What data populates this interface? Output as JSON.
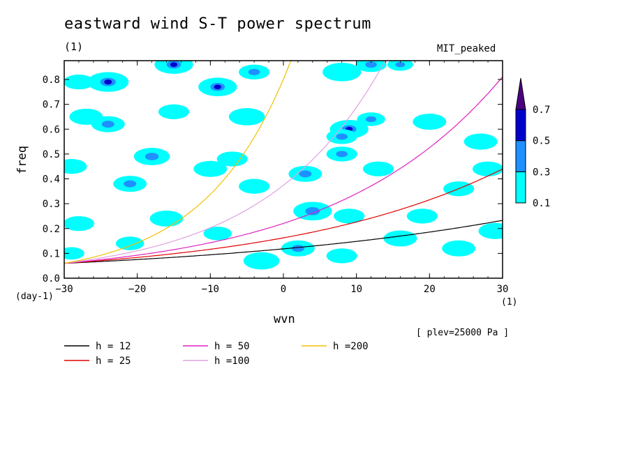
{
  "header": {
    "title": "eastward wind S-T power spectrum",
    "unit_left": "(1)",
    "model": "MIT_peaked",
    "plev": "[ plev=25000 Pa ]",
    "x_unit_left": "(day-1)",
    "x_unit_right": "(1)"
  },
  "chart_data": {
    "type": "contour",
    "title": "eastward wind S-T power spectrum",
    "xlabel": "wvn",
    "ylabel": "freq",
    "xlim": [
      -30,
      30
    ],
    "ylim": [
      0,
      0.88
    ],
    "xticks": [
      -30,
      -20,
      -10,
      0,
      10,
      20,
      30
    ],
    "yticks": [
      0.0,
      0.1,
      0.2,
      0.3,
      0.4,
      0.5,
      0.6,
      0.7,
      0.8
    ],
    "ytick_labels": [
      "0.0",
      "0.1",
      "0.2",
      "0.3",
      "0.4",
      "0.5",
      "0.6",
      "0.7",
      "0.8"
    ],
    "colorbar": {
      "levels": [
        "0.1",
        "0.3",
        "0.5",
        "0.7"
      ],
      "colors": [
        "#00ffff",
        "#1e90ff",
        "#0000cd",
        "#4b0082"
      ]
    },
    "dispersion_curves": [
      {
        "name": "h = 12",
        "h": 12,
        "color": "#000000"
      },
      {
        "name": "h = 25",
        "h": 25,
        "color": "#e00000"
      },
      {
        "name": "h = 50",
        "h": 50,
        "color": "#e020c0"
      },
      {
        "name": "h =100",
        "h": 100,
        "color": "#e0a0e0"
      },
      {
        "name": "h =200",
        "h": 200,
        "color": "#f0c000"
      }
    ],
    "contour_blobs": [
      {
        "x": -28,
        "y": 0.79,
        "r": 1.2,
        "lvl": 0
      },
      {
        "x": -24,
        "y": 0.79,
        "r": 1.6,
        "lvl": 2
      },
      {
        "x": -15,
        "y": 0.86,
        "r": 1.5,
        "lvl": 2
      },
      {
        "x": -9,
        "y": 0.77,
        "r": 1.5,
        "lvl": 2
      },
      {
        "x": -4,
        "y": 0.83,
        "r": 1.2,
        "lvl": 1
      },
      {
        "x": 8,
        "y": 0.83,
        "r": 1.5,
        "lvl": 0
      },
      {
        "x": 12,
        "y": 0.86,
        "r": 1.2,
        "lvl": 1
      },
      {
        "x": 16,
        "y": 0.86,
        "r": 1.0,
        "lvl": 1
      },
      {
        "x": -27,
        "y": 0.65,
        "r": 1.3,
        "lvl": 0
      },
      {
        "x": -24,
        "y": 0.62,
        "r": 1.3,
        "lvl": 1
      },
      {
        "x": -15,
        "y": 0.67,
        "r": 1.2,
        "lvl": 0
      },
      {
        "x": -5,
        "y": 0.65,
        "r": 1.4,
        "lvl": 0
      },
      {
        "x": 9,
        "y": 0.6,
        "r": 1.5,
        "lvl": 2
      },
      {
        "x": 12,
        "y": 0.64,
        "r": 1.1,
        "lvl": 1
      },
      {
        "x": 20,
        "y": 0.63,
        "r": 1.3,
        "lvl": 0
      },
      {
        "x": 27,
        "y": 0.55,
        "r": 1.3,
        "lvl": 0
      },
      {
        "x": -29,
        "y": 0.45,
        "r": 1.2,
        "lvl": 0
      },
      {
        "x": -18,
        "y": 0.49,
        "r": 1.4,
        "lvl": 1
      },
      {
        "x": -7,
        "y": 0.48,
        "r": 1.2,
        "lvl": 0
      },
      {
        "x": 3,
        "y": 0.42,
        "r": 1.3,
        "lvl": 1
      },
      {
        "x": 8,
        "y": 0.5,
        "r": 1.2,
        "lvl": 1
      },
      {
        "x": 8,
        "y": 0.57,
        "r": 1.2,
        "lvl": 1
      },
      {
        "x": 28,
        "y": 0.44,
        "r": 1.2,
        "lvl": 0
      },
      {
        "x": -21,
        "y": 0.38,
        "r": 1.3,
        "lvl": 1
      },
      {
        "x": -10,
        "y": 0.44,
        "r": 1.3,
        "lvl": 0
      },
      {
        "x": -4,
        "y": 0.37,
        "r": 1.2,
        "lvl": 0
      },
      {
        "x": 13,
        "y": 0.44,
        "r": 1.2,
        "lvl": 0
      },
      {
        "x": 24,
        "y": 0.36,
        "r": 1.2,
        "lvl": 0
      },
      {
        "x": 4,
        "y": 0.27,
        "r": 1.5,
        "lvl": 1
      },
      {
        "x": -16,
        "y": 0.24,
        "r": 1.3,
        "lvl": 0
      },
      {
        "x": -28,
        "y": 0.22,
        "r": 1.2,
        "lvl": 0
      },
      {
        "x": 9,
        "y": 0.25,
        "r": 1.2,
        "lvl": 0
      },
      {
        "x": 19,
        "y": 0.25,
        "r": 1.2,
        "lvl": 0
      },
      {
        "x": 2,
        "y": 0.12,
        "r": 1.3,
        "lvl": 1
      },
      {
        "x": -3,
        "y": 0.07,
        "r": 1.4,
        "lvl": 0
      },
      {
        "x": 8,
        "y": 0.09,
        "r": 1.2,
        "lvl": 0
      },
      {
        "x": 16,
        "y": 0.16,
        "r": 1.3,
        "lvl": 0
      },
      {
        "x": 24,
        "y": 0.12,
        "r": 1.3,
        "lvl": 0
      },
      {
        "x": 29,
        "y": 0.19,
        "r": 1.3,
        "lvl": 0
      },
      {
        "x": -21,
        "y": 0.14,
        "r": 1.1,
        "lvl": 0
      },
      {
        "x": -9,
        "y": 0.18,
        "r": 1.1,
        "lvl": 0
      },
      {
        "x": -29,
        "y": 0.1,
        "r": 1.0,
        "lvl": 0
      }
    ]
  }
}
